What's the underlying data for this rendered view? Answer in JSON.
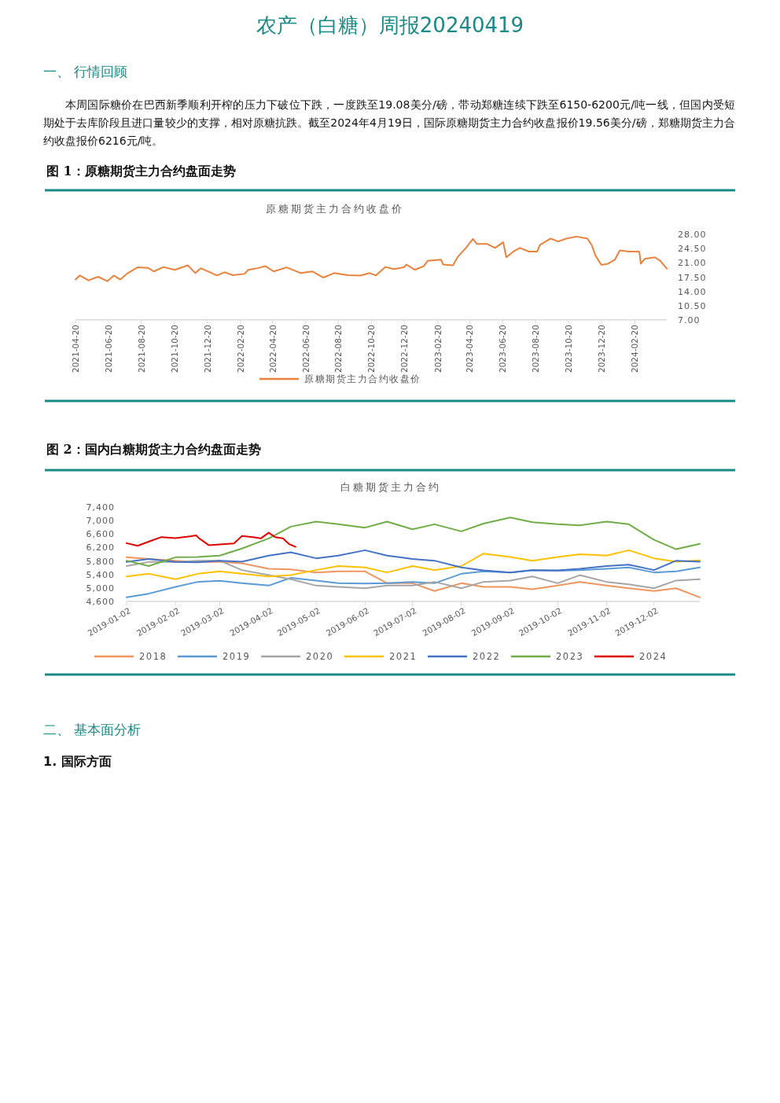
{
  "chart_data": [
    {
      "type": "other",
      "title": "农产（白糖）周报20240419",
      "annotations": [
        "一、 行情回顾",
        "本周国际糖价在巴西新季顺利开榨的压力下破位下跌，一度跌至19.08美分/磅，带动郑糖连续下跌至6150-6200元/吨一线，但国内受短期处于去库阶段且进口量较少的支撑，相对原糖抗跌。截至2024年4月19日，国际原糖期货主力合约收盘报价19.56美分/磅，郑糖期货主力合约收盘报价6216元/吨。"
      ]
    },
    {
      "type": "line",
      "title": "原糖期货主力合约收盘价",
      "annotations": [
        "图 1：原糖期货主力合约盘面走势"
      ],
      "x": [
        "2021-04-20",
        "2021-04-28",
        "2021-05-14",
        "2021-06-01",
        "2021-06-18",
        "2021-06-30",
        "2021-07-12",
        "2021-07-26",
        "2021-08-13",
        "2021-09-01",
        "2021-09-12",
        "2021-09-30",
        "2021-10-21",
        "2021-11-14",
        "2021-11-28",
        "2021-12-08",
        "2022-01-07",
        "2022-01-21",
        "2022-02-05",
        "2022-02-27",
        "2022-03-06",
        "2022-03-23",
        "2022-04-07",
        "2022-04-22",
        "2022-05-16",
        "2022-06-11",
        "2022-07-03",
        "2022-07-23",
        "2022-08-12",
        "2022-09-06",
        "2022-09-30",
        "2022-10-17",
        "2022-10-28",
        "2022-11-15",
        "2022-11-30",
        "2022-12-19",
        "2022-12-24",
        "2023-01-08",
        "2023-01-25",
        "2023-02-01",
        "2023-02-26",
        "2023-03-02",
        "2023-03-20",
        "2023-03-29",
        "2023-04-13",
        "2023-04-26",
        "2023-05-03",
        "2023-05-22",
        "2023-06-06",
        "2023-06-21",
        "2023-06-27",
        "2023-07-10",
        "2023-07-22",
        "2023-08-08",
        "2023-08-23",
        "2023-08-28",
        "2023-09-17",
        "2023-10-01",
        "2023-10-16",
        "2023-11-04",
        "2023-11-24",
        "2023-12-02",
        "2023-12-09",
        "2023-12-20",
        "2024-01-01",
        "2024-01-14",
        "2024-01-23",
        "2024-02-09",
        "2024-02-28",
        "2024-03-02",
        "2024-03-09",
        "2024-03-28",
        "2024-04-07",
        "2024-04-19"
      ],
      "series": [
        {
          "name": "原糖期货主力合约收盘价",
          "color": "#e8823c",
          "values": [
            16.9,
            17.9,
            16.7,
            17.6,
            16.5,
            17.9,
            16.9,
            18.5,
            19.9,
            19.8,
            18.9,
            20.0,
            19.3,
            20.4,
            18.5,
            19.7,
            17.9,
            18.7,
            18.0,
            18.3,
            19.3,
            19.7,
            20.2,
            18.9,
            19.9,
            18.5,
            18.9,
            17.4,
            18.5,
            18.0,
            17.9,
            18.5,
            17.9,
            20.0,
            19.5,
            19.9,
            20.6,
            19.3,
            20.2,
            21.5,
            21.8,
            20.6,
            20.4,
            22.5,
            24.7,
            26.9,
            25.7,
            25.7,
            24.7,
            26.1,
            22.4,
            23.8,
            24.7,
            23.8,
            23.8,
            25.4,
            27.0,
            26.3,
            27.0,
            27.5,
            27.0,
            25.4,
            22.8,
            20.5,
            20.8,
            21.8,
            24.1,
            23.8,
            23.8,
            20.8,
            22.0,
            22.4,
            21.5,
            19.6
          ]
        }
      ],
      "xlim": [
        "2021-04-20",
        "2024-04-19"
      ],
      "xticks": [
        "2021-04-20",
        "2021-06-20",
        "2021-08-20",
        "2021-10-20",
        "2021-12-20",
        "2022-02-20",
        "2022-04-20",
        "2022-06-20",
        "2022-08-20",
        "2022-10-20",
        "2022-12-20",
        "2023-02-20",
        "2023-04-20",
        "2023-06-20",
        "2023-08-20",
        "2023-10-20",
        "2023-12-20",
        "2024-02-20"
      ],
      "ylim": [
        7,
        28
      ],
      "yticks": [
        {
          "value": 7,
          "label": "7.00"
        },
        {
          "value": 10.5,
          "label": "10.50"
        },
        {
          "value": 14,
          "label": "14.00"
        },
        {
          "value": 17.5,
          "label": "17.50"
        },
        {
          "value": 21,
          "label": "21.00"
        },
        {
          "value": 24.5,
          "label": "24.50"
        },
        {
          "value": 28,
          "label": "28.00"
        }
      ],
      "legend": "bottom"
    },
    {
      "type": "line",
      "title": "白糖期货主力合约",
      "annotations": [
        "图 2：国内白糖期货主力合约盘面走势"
      ],
      "x": [
        "2019-01-02",
        "2019-01-16",
        "2019-02-02",
        "2019-02-16",
        "2019-03-02",
        "2019-03-16",
        "2019-04-02",
        "2019-04-16",
        "2019-05-02",
        "2019-05-16",
        "2019-06-02",
        "2019-06-16",
        "2019-07-02",
        "2019-07-16",
        "2019-08-02",
        "2019-08-16",
        "2019-09-02",
        "2019-09-16",
        "2019-10-02",
        "2019-10-16",
        "2019-11-02",
        "2019-11-16",
        "2019-12-02",
        "2019-12-16",
        "2019-12-31"
      ],
      "series": [
        {
          "name": "2018",
          "color": "#f0955e",
          "values": [
            5910,
            5860,
            5810,
            5770,
            5770,
            5730,
            5570,
            5550,
            5460,
            5490,
            5490,
            5140,
            5140,
            4910,
            5140,
            5030,
            5030,
            4960,
            5070,
            5180,
            5070,
            4990,
            4910,
            4990,
            4720
          ]
        },
        {
          "name": "2019",
          "color": "#5b9bd5",
          "values": [
            4720,
            4830,
            5030,
            5180,
            5210,
            5140,
            5070,
            5300,
            5220,
            5140,
            5130,
            5140,
            5180,
            5140,
            5420,
            5490,
            5460,
            5530,
            5510,
            5530,
            5570,
            5610,
            5460,
            5490,
            5610
          ]
        },
        {
          "name": "2020",
          "color": "#a5a5a5",
          "values": [
            5650,
            5770,
            5770,
            5810,
            5810,
            5530,
            5380,
            5260,
            5070,
            5030,
            4990,
            5070,
            5070,
            5180,
            4990,
            5180,
            5220,
            5340,
            5140,
            5380,
            5180,
            5110,
            4990,
            5220,
            5260
          ]
        },
        {
          "name": "2021",
          "color": "#ffc000",
          "values": [
            5340,
            5420,
            5260,
            5420,
            5490,
            5420,
            5340,
            5380,
            5530,
            5650,
            5610,
            5460,
            5650,
            5530,
            5650,
            6020,
            5920,
            5810,
            5920,
            6000,
            5960,
            6120,
            5880,
            5780,
            5820
          ]
        },
        {
          "name": "2022",
          "color": "#4472c4",
          "values": [
            5770,
            5860,
            5770,
            5760,
            5810,
            5780,
            5960,
            6060,
            5880,
            5960,
            6120,
            5960,
            5860,
            5810,
            5610,
            5520,
            5460,
            5530,
            5520,
            5570,
            5650,
            5690,
            5530,
            5810,
            5780
          ]
        },
        {
          "name": "2023",
          "color": "#70ad47",
          "values": [
            5810,
            5650,
            5910,
            5920,
            5960,
            6170,
            6470,
            6820,
            6970,
            6890,
            6790,
            6970,
            6740,
            6890,
            6680,
            6910,
            7090,
            6950,
            6890,
            6860,
            6970,
            6890,
            6430,
            6150,
            6310
          ]
        },
        {
          "name": "2024",
          "color": "#e00000",
          "x": [
            "2019-01-02",
            "2019-01-09",
            "2019-01-17",
            "2019-01-24",
            "2019-02-02",
            "2019-02-11",
            "2019-02-15",
            "2019-02-17",
            "2019-02-23",
            "2019-03-02",
            "2019-03-11",
            "2019-03-16",
            "2019-03-23",
            "2019-03-28",
            "2019-04-02",
            "2019-04-06",
            "2019-04-11",
            "2019-04-15",
            "2019-04-19"
          ],
          "values": [
            6330,
            6250,
            6390,
            6510,
            6480,
            6530,
            6560,
            6470,
            6270,
            6290,
            6320,
            6540,
            6510,
            6470,
            6640,
            6510,
            6470,
            6300,
            6220
          ]
        }
      ],
      "xlim": [
        "2019-01-02",
        "2019-12-31"
      ],
      "xticks": [
        "2019-01-02",
        "2019-02-02",
        "2019-03-02",
        "2019-04-02",
        "2019-05-02",
        "2019-06-02",
        "2019-07-02",
        "2019-08-02",
        "2019-09-02",
        "2019-10-02",
        "2019-11-02",
        "2019-12-02"
      ],
      "ylim": [
        4600,
        7400
      ],
      "yticks": [
        {
          "value": 4600,
          "label": "4,600"
        },
        {
          "value": 5000,
          "label": "5,000"
        },
        {
          "value": 5400,
          "label": "5,400"
        },
        {
          "value": 5800,
          "label": "5,800"
        },
        {
          "value": 6200,
          "label": "6,200"
        },
        {
          "value": 6600,
          "label": "6,600"
        },
        {
          "value": 7000,
          "label": "7,000"
        },
        {
          "value": 7400,
          "label": "7,400"
        }
      ],
      "legend": "bottom"
    },
    {
      "type": "other",
      "annotations": [
        "二、 基本面分析",
        "1. 国际方面"
      ]
    }
  ]
}
